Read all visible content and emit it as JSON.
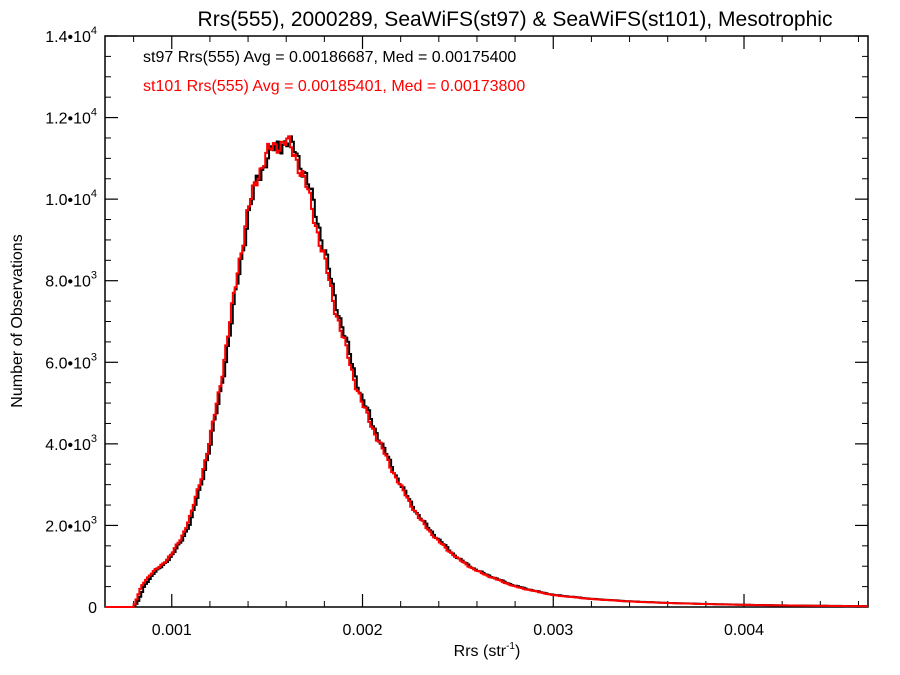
{
  "chart_data": {
    "type": "histogram",
    "title": "Rrs(555), 2000289, SeaWiFS(st97) & SeaWiFS(st101), Mesotrophic",
    "xlabel_main": "Rrs (str",
    "xlabel_sup": "-1",
    "xlabel_end": ")",
    "ylabel": "Number of Observations",
    "xlim": [
      0.00065,
      0.00465
    ],
    "ylim": [
      0,
      14000
    ],
    "xticks": [
      {
        "value": 0.001,
        "label": "0.001"
      },
      {
        "value": 0.002,
        "label": "0.002"
      },
      {
        "value": 0.003,
        "label": "0.003"
      },
      {
        "value": 0.004,
        "label": "0.004"
      }
    ],
    "yticks": [
      {
        "value": 0,
        "mant": "0",
        "exp": ""
      },
      {
        "value": 2000,
        "mant": "2.0•10",
        "exp": "3"
      },
      {
        "value": 4000,
        "mant": "4.0•10",
        "exp": "3"
      },
      {
        "value": 6000,
        "mant": "6.0•10",
        "exp": "3"
      },
      {
        "value": 8000,
        "mant": "8.0•10",
        "exp": "3"
      },
      {
        "value": 10000,
        "mant": "1.0•10",
        "exp": "4"
      },
      {
        "value": 12000,
        "mant": "1.2•10",
        "exp": "4"
      },
      {
        "value": 14000,
        "mant": "1.4•10",
        "exp": "4"
      }
    ],
    "annotations": [
      {
        "text": "st97 Rrs(555) Avg = 0.00186687, Med = 0.00175400",
        "color": "#000000"
      },
      {
        "text": "st101 Rrs(555) Avg = 0.00185401, Med = 0.00173800",
        "color": "#ff0000"
      }
    ],
    "series": [
      {
        "name": "st97",
        "color": "#000000",
        "points": [
          [
            0.0008,
            0
          ],
          [
            0.00082,
            100
          ],
          [
            0.00084,
            300
          ],
          [
            0.00086,
            550
          ],
          [
            0.00088,
            650
          ],
          [
            0.0009,
            800
          ],
          [
            0.00095,
            1000
          ],
          [
            0.001,
            1250
          ],
          [
            0.00105,
            1600
          ],
          [
            0.0011,
            2100
          ],
          [
            0.00115,
            2900
          ],
          [
            0.0012,
            3900
          ],
          [
            0.00125,
            5100
          ],
          [
            0.0013,
            6500
          ],
          [
            0.00135,
            8100
          ],
          [
            0.0014,
            9500
          ],
          [
            0.00145,
            10500
          ],
          [
            0.0015,
            11000
          ],
          [
            0.00155,
            11300
          ],
          [
            0.0016,
            11400
          ],
          [
            0.00165,
            11200
          ],
          [
            0.0017,
            10600
          ],
          [
            0.00175,
            9800
          ],
          [
            0.0018,
            8800
          ],
          [
            0.00185,
            7700
          ],
          [
            0.0019,
            6800
          ],
          [
            0.00195,
            5900
          ],
          [
            0.002,
            5100
          ],
          [
            0.0021,
            4000
          ],
          [
            0.0022,
            3000
          ],
          [
            0.0023,
            2200
          ],
          [
            0.0024,
            1650
          ],
          [
            0.0025,
            1200
          ],
          [
            0.0026,
            900
          ],
          [
            0.0027,
            700
          ],
          [
            0.0028,
            520
          ],
          [
            0.0029,
            400
          ],
          [
            0.003,
            300
          ],
          [
            0.0032,
            200
          ],
          [
            0.0034,
            140
          ],
          [
            0.0036,
            100
          ],
          [
            0.0038,
            75
          ],
          [
            0.004,
            55
          ],
          [
            0.0042,
            40
          ],
          [
            0.0044,
            30
          ],
          [
            0.00465,
            20
          ]
        ]
      },
      {
        "name": "st101",
        "color": "#ff0000",
        "points": [
          [
            0.0008,
            0
          ],
          [
            0.00082,
            250
          ],
          [
            0.00084,
            500
          ],
          [
            0.00086,
            650
          ],
          [
            0.00088,
            750
          ],
          [
            0.0009,
            850
          ],
          [
            0.00095,
            1050
          ],
          [
            0.001,
            1300
          ],
          [
            0.00105,
            1700
          ],
          [
            0.0011,
            2250
          ],
          [
            0.00115,
            3100
          ],
          [
            0.0012,
            4100
          ],
          [
            0.00125,
            5350
          ],
          [
            0.0013,
            6800
          ],
          [
            0.00135,
            8400
          ],
          [
            0.0014,
            9700
          ],
          [
            0.00145,
            10600
          ],
          [
            0.0015,
            11100
          ],
          [
            0.00155,
            11350
          ],
          [
            0.0016,
            11400
          ],
          [
            0.00165,
            11050
          ],
          [
            0.0017,
            10400
          ],
          [
            0.00175,
            9500
          ],
          [
            0.0018,
            8500
          ],
          [
            0.00185,
            7450
          ],
          [
            0.0019,
            6550
          ],
          [
            0.00195,
            5700
          ],
          [
            0.002,
            4950
          ],
          [
            0.0021,
            3900
          ],
          [
            0.0022,
            2950
          ],
          [
            0.0023,
            2150
          ],
          [
            0.0024,
            1600
          ],
          [
            0.0025,
            1180
          ],
          [
            0.0026,
            880
          ],
          [
            0.0027,
            680
          ],
          [
            0.0028,
            500
          ],
          [
            0.0029,
            390
          ],
          [
            0.003,
            290
          ],
          [
            0.0032,
            195
          ],
          [
            0.0034,
            135
          ],
          [
            0.0036,
            98
          ],
          [
            0.0038,
            72
          ],
          [
            0.004,
            53
          ],
          [
            0.0042,
            38
          ],
          [
            0.0044,
            28
          ],
          [
            0.00465,
            18
          ]
        ]
      }
    ]
  }
}
